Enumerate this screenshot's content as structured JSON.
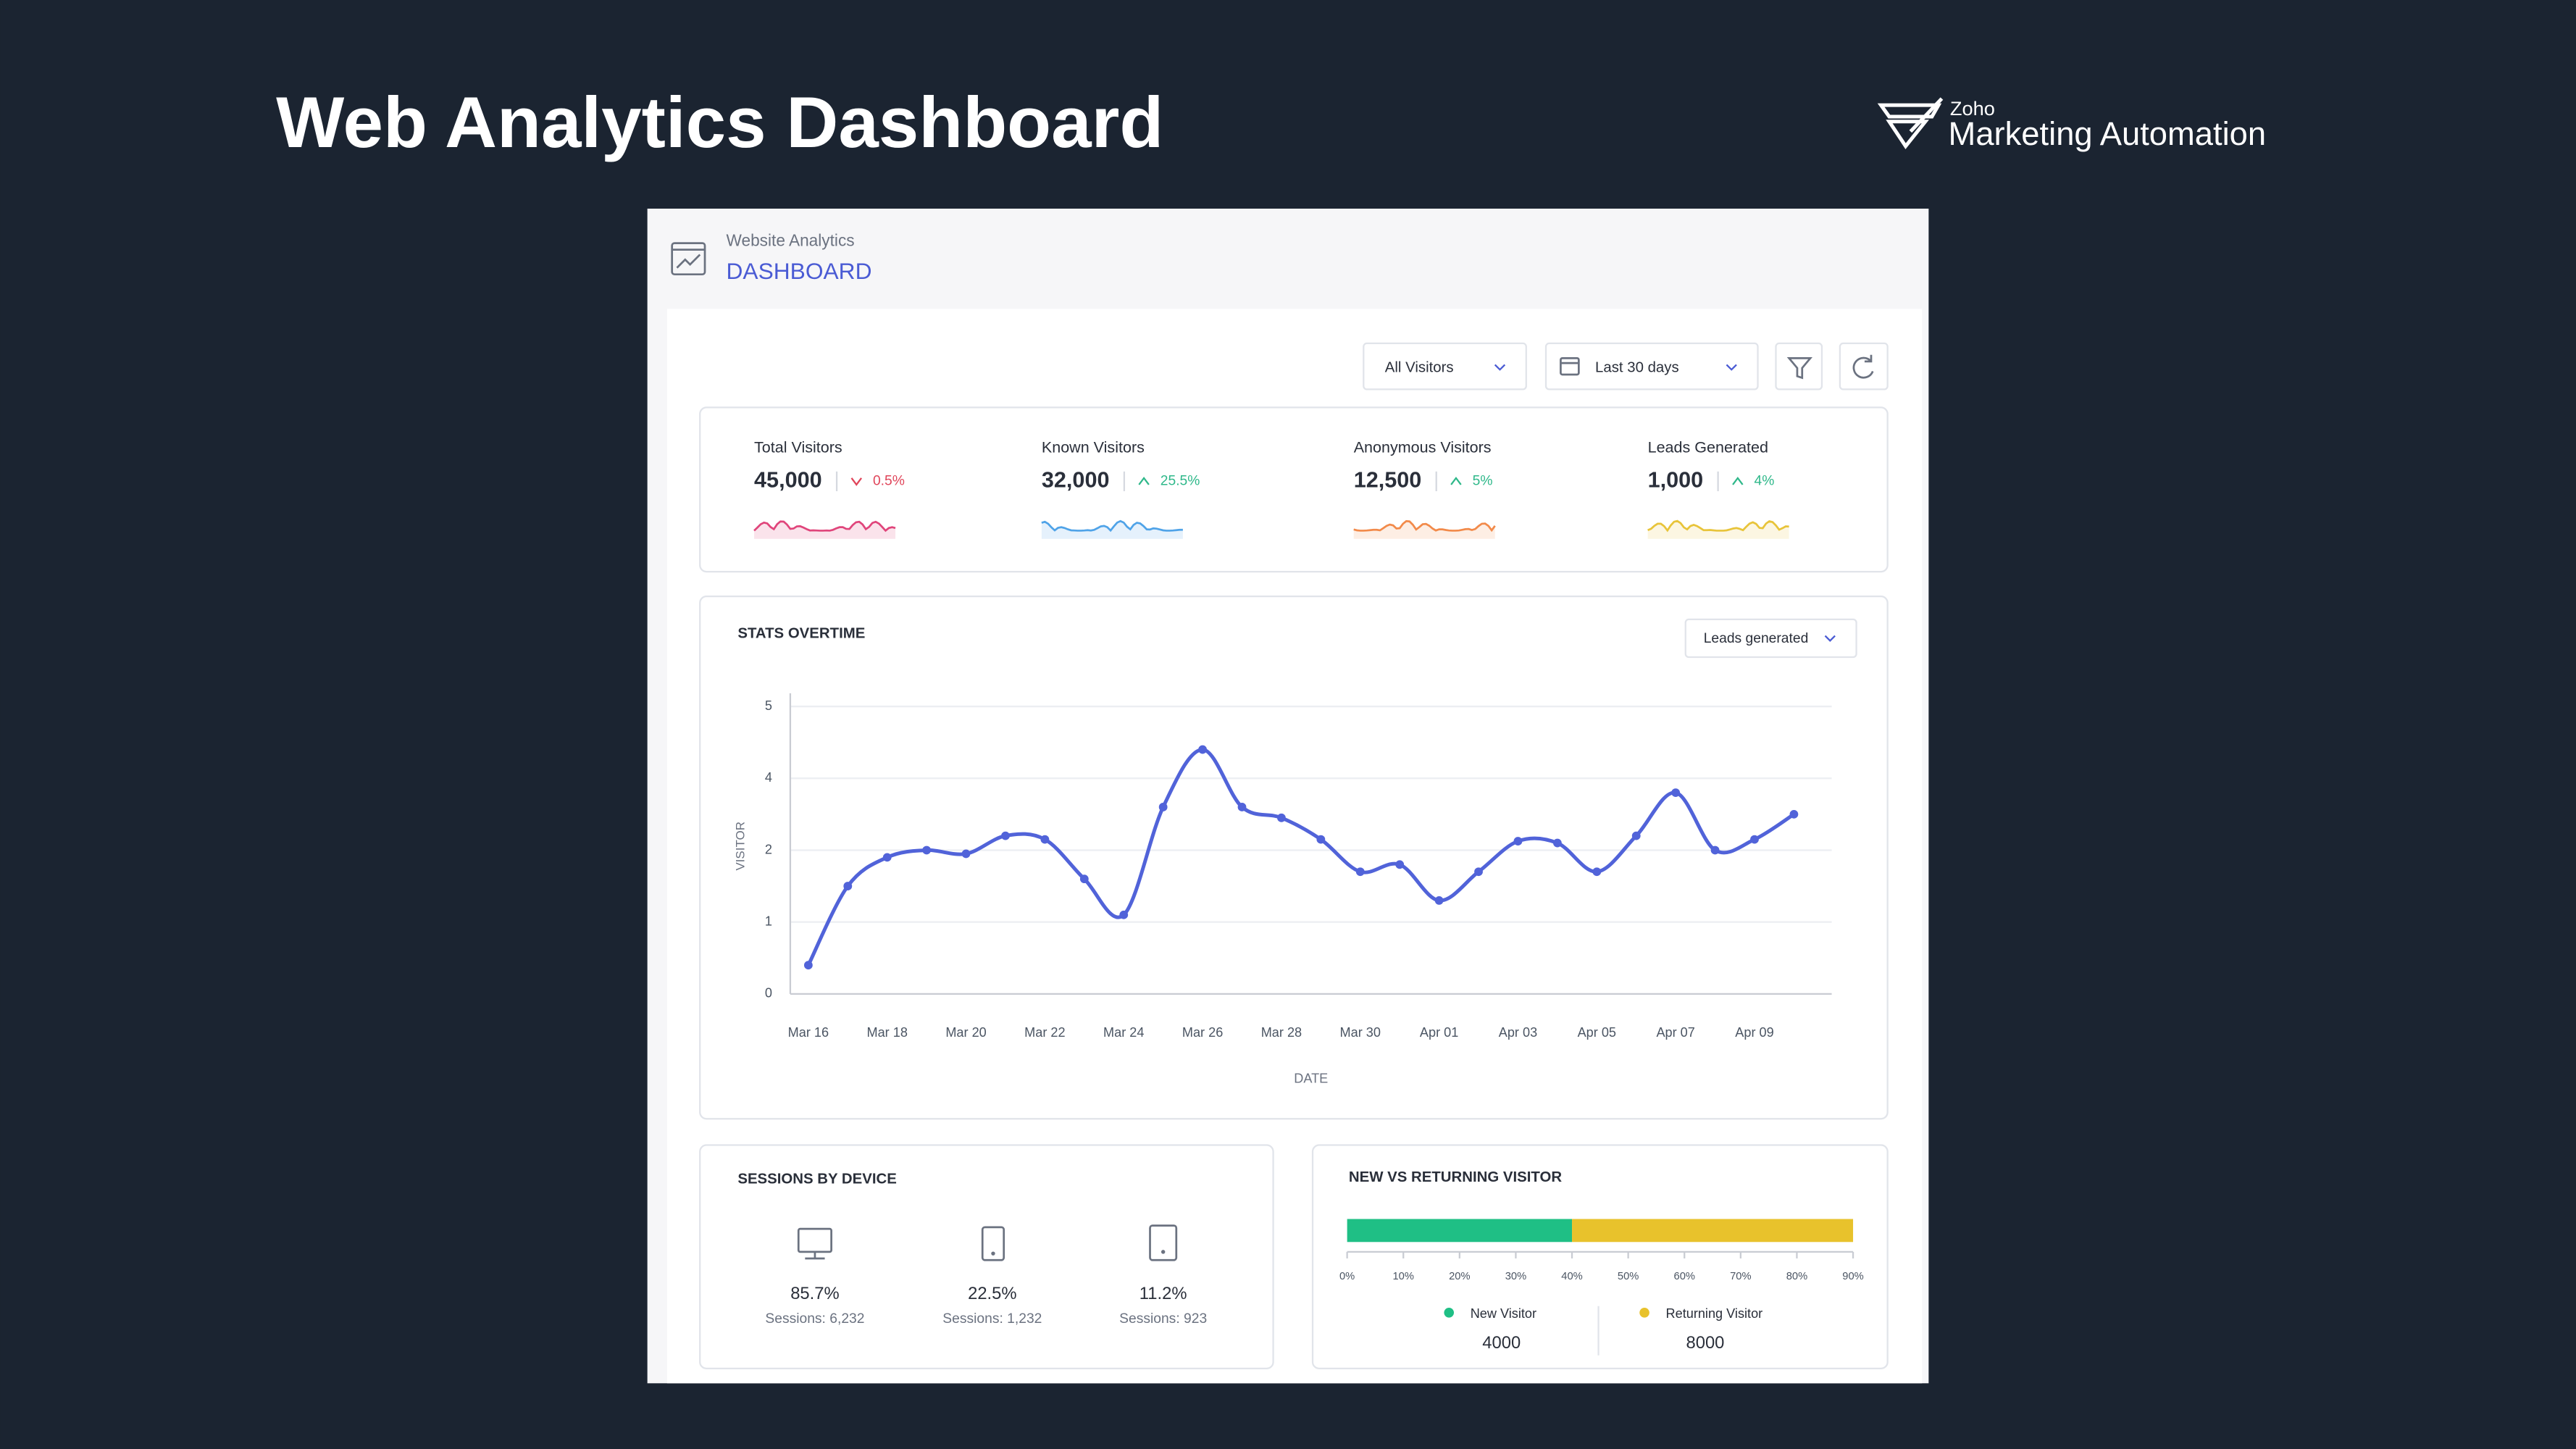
{
  "header": {
    "title": "Web Analytics Dashboard",
    "brand_small": "Zoho",
    "brand": "Marketing Automation"
  },
  "dashboard": {
    "section": "Website Analytics",
    "title": "DASHBOARD",
    "filters": [
      "All Visitors",
      "Last 30 days"
    ]
  },
  "kpis": [
    {
      "label": "Total Visitors",
      "value": "45,000",
      "change": "0.5%",
      "trend": "down",
      "change_color": "#e0455a",
      "color": "#e0457b"
    },
    {
      "label": "Known Visitors",
      "value": "32,000",
      "change": "25.5%",
      "trend": "up",
      "change_color": "#2fb88a",
      "color": "#4fa3e8"
    },
    {
      "label": "Anonymous Visitors",
      "value": "12,500",
      "change": "5%",
      "trend": "up",
      "change_color": "#2fb88a",
      "color": "#f28a4a"
    },
    {
      "label": "Leads Generated",
      "value": "1,000",
      "change": "4%",
      "trend": "up",
      "change_color": "#2fb88a",
      "color": "#e8c43a"
    }
  ],
  "chart_data": [
    {
      "type": "line",
      "title": "STATS OVERTIME",
      "metric": "Leads generated",
      "y_label": "VISITOR",
      "x_label": "DATE",
      "categories": [
        "Mar 16",
        null,
        "Mar 18",
        null,
        "Mar 20",
        null,
        "Mar 22",
        null,
        "Mar 24",
        null,
        "Mar 26",
        null,
        "Mar 28",
        null,
        "Mar 30",
        null,
        "Apr 01",
        null,
        "Apr 03",
        null,
        "Apr 05",
        null,
        "Apr 07",
        null,
        "Apr 09",
        null
      ],
      "values": [
        0.4,
        1.5,
        1.9,
        2.0,
        1.95,
        2.4,
        2.3,
        1.6,
        1.1,
        3.2,
        4.4,
        3.2,
        2.9,
        2.3,
        1.7,
        1.8,
        1.3,
        1.7,
        2.25,
        2.2,
        1.7,
        2.4,
        3.6,
        2.0,
        2.3,
        3.0
      ],
      "color": "#5163d9",
      "ylim": [
        0,
        5
      ],
      "yticks": [
        0,
        1,
        2,
        4,
        5
      ],
      "grid": true
    },
    {
      "type": "stacked_bar",
      "title": "NEW VS RETURNING VISITOR",
      "series": [
        {
          "name": "New Visitor",
          "color": "#1fbf85",
          "values": [
            40
          ],
          "count": 4000
        },
        {
          "name": "Returning Visitor",
          "color": "#e8c22c",
          "values": [
            50
          ],
          "count": 8000
        }
      ],
      "xlim": [
        0,
        90
      ],
      "xticks": [
        {
          "value": 0,
          "label": "0%"
        },
        {
          "value": 10,
          "label": "10%"
        },
        {
          "value": 20,
          "label": "20%"
        },
        {
          "value": 30,
          "label": "30%"
        },
        {
          "value": 40,
          "label": "40%"
        },
        {
          "value": 50,
          "label": "50%"
        },
        {
          "value": 60,
          "label": "60%"
        },
        {
          "value": 70,
          "label": "70%"
        },
        {
          "value": 80,
          "label": "80%"
        },
        {
          "value": 90,
          "label": "90%"
        }
      ]
    }
  ],
  "sessions": {
    "title": "SESSIONS BY DEVICE",
    "devices": [
      {
        "share": "85.7%",
        "sessions": "Sessions: 6,232"
      },
      {
        "share": "22.5%",
        "sessions": "Sessions: 1,232"
      },
      {
        "share": "11.2%",
        "sessions": "Sessions: 923"
      }
    ]
  }
}
